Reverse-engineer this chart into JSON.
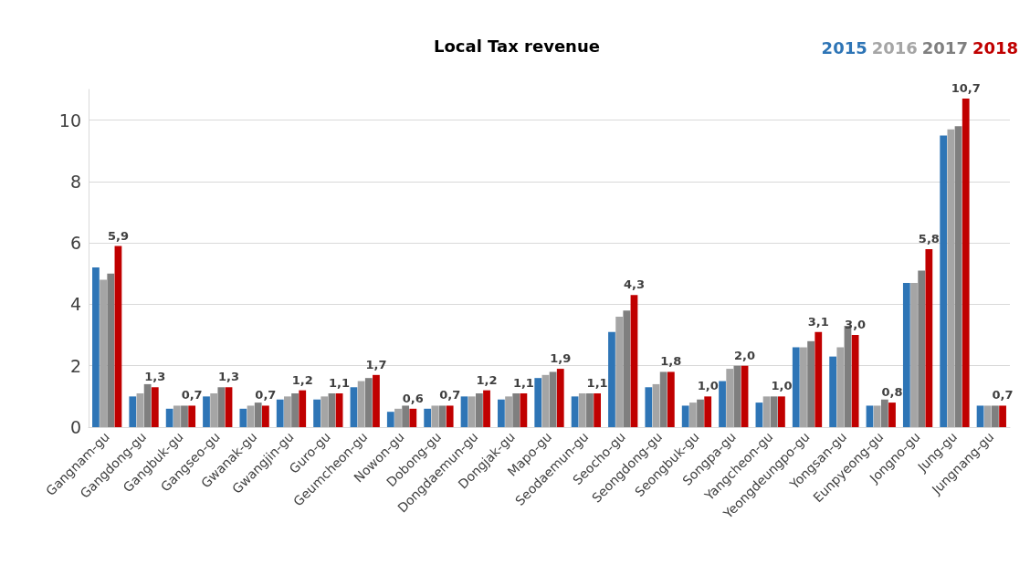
{
  "chart_data": {
    "type": "bar",
    "title": "Local Tax revenue",
    "categories": [
      "Gangnam-gu",
      "Gangdong-gu",
      "Gangbuk-gu",
      "Gangseo-gu",
      "Gwanak-gu",
      "Gwangjin-gu",
      "Guro-gu",
      "Geumcheon-gu",
      "Nowon-gu",
      "Dobong-gu",
      "Dongdaemun-gu",
      "Dongjak-gu",
      "Mapo-gu",
      "Seodaemun-gu",
      "Seocho-gu",
      "Seongdong-gu",
      "Seongbuk-gu",
      "Songpa-gu",
      "Yangcheon-gu",
      "Yeongdeungpo-gu",
      "Yongsan-gu",
      "Eunpyeong-gu",
      "Jongno-gu",
      "Jung-gu",
      "Jungnang-gu"
    ],
    "series": [
      {
        "name": "2015",
        "color": "#2e75b6",
        "values": [
          5.2,
          1.0,
          0.6,
          1.0,
          0.6,
          0.9,
          0.9,
          1.3,
          0.5,
          0.6,
          1.0,
          0.9,
          1.6,
          1.0,
          3.1,
          1.3,
          0.7,
          1.5,
          0.8,
          2.6,
          2.3,
          0.7,
          4.7,
          9.5,
          0.7
        ]
      },
      {
        "name": "2016",
        "color": "#a5a5a5",
        "values": [
          4.8,
          1.1,
          0.7,
          1.1,
          0.7,
          1.0,
          1.0,
          1.5,
          0.6,
          0.7,
          1.0,
          1.0,
          1.7,
          1.1,
          3.6,
          1.4,
          0.8,
          1.9,
          1.0,
          2.6,
          2.6,
          0.7,
          4.7,
          9.7,
          0.7
        ]
      },
      {
        "name": "2017",
        "color": "#7f7f7f",
        "values": [
          5.0,
          1.4,
          0.7,
          1.3,
          0.8,
          1.1,
          1.1,
          1.6,
          0.7,
          0.7,
          1.1,
          1.1,
          1.8,
          1.1,
          3.8,
          1.8,
          0.9,
          2.0,
          1.0,
          2.8,
          3.3,
          0.9,
          5.1,
          9.8,
          0.7
        ]
      },
      {
        "name": "2018",
        "color": "#c00000",
        "values": [
          5.9,
          1.3,
          0.7,
          1.3,
          0.7,
          1.2,
          1.1,
          1.7,
          0.6,
          0.7,
          1.2,
          1.1,
          1.9,
          1.1,
          4.3,
          1.8,
          1.0,
          2.0,
          1.0,
          3.1,
          3.0,
          0.8,
          5.8,
          10.7,
          0.7
        ],
        "value_labels": [
          "5,9",
          "1,3",
          "0,7",
          "1,3",
          "0,7",
          "1,2",
          "1,1",
          "1,7",
          "0,6",
          "0,7",
          "1,2",
          "1,1",
          "1,9",
          "1,1",
          "4,3",
          "1,8",
          "1,0",
          "2,0",
          "1,0",
          "3,1",
          "3,0",
          "0,8",
          "5,8",
          "10,7",
          "0,7"
        ]
      }
    ],
    "ylim": [
      0,
      11
    ],
    "yticks": [
      0,
      2,
      4,
      6,
      8,
      10
    ],
    "grid": "y",
    "legend": "top right"
  }
}
